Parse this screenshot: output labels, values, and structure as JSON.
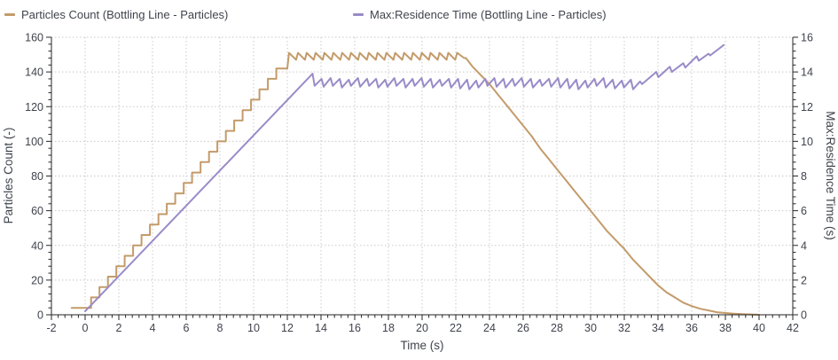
{
  "legend": {
    "items": [
      {
        "label": "Particles Count (Bottling Line - Particles)",
        "color": "#c39b6a"
      },
      {
        "label": "Max:Residence Time (Bottling Line - Particles)",
        "color": "#9a8bc8"
      }
    ]
  },
  "axes": {
    "x": {
      "label": "Time (s)",
      "min": -2,
      "max": 42,
      "major_step": 2,
      "minor_divisions": 5
    },
    "y_left": {
      "label": "Particles Count (-)",
      "min": 0,
      "max": 160,
      "major_step": 20,
      "minor_divisions": 5
    },
    "y_right": {
      "label": "Max:Residence Time (s)",
      "min": 0,
      "max": 16,
      "major_step": 2,
      "minor_divisions": 5
    }
  },
  "styles": {
    "text_color": "#3f434c",
    "axis_color": "#262626",
    "grid_color": "#c9c9c9",
    "background": "#ffffff"
  },
  "chart_data": {
    "type": "line",
    "title": "",
    "grid": "dotted",
    "legend_position": "top",
    "x_range": [
      -2,
      42
    ],
    "y_left_range": [
      0,
      160
    ],
    "y_right_range": [
      0,
      16
    ],
    "series": [
      {
        "name": "Particles Count (Bottling Line - Particles)",
        "yaxis": "left",
        "color": "#c39b6a",
        "points": [
          [
            -0.8,
            4
          ],
          [
            0.35,
            4
          ],
          [
            0.35,
            10
          ],
          [
            0.85,
            10
          ],
          [
            0.85,
            16
          ],
          [
            1.35,
            16
          ],
          [
            1.35,
            22
          ],
          [
            1.85,
            22
          ],
          [
            1.85,
            28
          ],
          [
            2.35,
            28
          ],
          [
            2.35,
            34
          ],
          [
            2.85,
            34
          ],
          [
            2.85,
            40
          ],
          [
            3.35,
            40
          ],
          [
            3.35,
            46
          ],
          [
            3.85,
            46
          ],
          [
            3.85,
            52
          ],
          [
            4.35,
            52
          ],
          [
            4.35,
            58
          ],
          [
            4.85,
            58
          ],
          [
            4.85,
            64
          ],
          [
            5.35,
            64
          ],
          [
            5.35,
            70
          ],
          [
            5.85,
            70
          ],
          [
            5.85,
            76
          ],
          [
            6.35,
            76
          ],
          [
            6.35,
            82
          ],
          [
            6.85,
            82
          ],
          [
            6.85,
            88
          ],
          [
            7.35,
            88
          ],
          [
            7.35,
            94
          ],
          [
            7.85,
            94
          ],
          [
            7.85,
            100
          ],
          [
            8.35,
            100
          ],
          [
            8.35,
            106
          ],
          [
            8.85,
            106
          ],
          [
            8.85,
            112
          ],
          [
            9.35,
            112
          ],
          [
            9.35,
            118
          ],
          [
            9.85,
            118
          ],
          [
            9.85,
            124
          ],
          [
            10.35,
            124
          ],
          [
            10.35,
            130
          ],
          [
            10.85,
            130
          ],
          [
            10.85,
            136
          ],
          [
            11.35,
            136
          ],
          [
            11.35,
            142
          ],
          [
            12.0,
            142
          ],
          [
            12.1,
            151
          ],
          [
            12.52,
            147
          ],
          [
            12.63,
            151
          ],
          [
            13.05,
            147
          ],
          [
            13.15,
            151
          ],
          [
            13.57,
            147
          ],
          [
            13.68,
            151
          ],
          [
            14.1,
            147
          ],
          [
            14.2,
            151
          ],
          [
            14.62,
            147
          ],
          [
            14.73,
            151
          ],
          [
            15.15,
            147
          ],
          [
            15.25,
            151
          ],
          [
            15.67,
            147
          ],
          [
            15.78,
            151
          ],
          [
            16.2,
            147
          ],
          [
            16.3,
            151
          ],
          [
            16.72,
            147
          ],
          [
            16.83,
            151
          ],
          [
            17.25,
            147
          ],
          [
            17.35,
            151
          ],
          [
            17.77,
            147
          ],
          [
            17.88,
            151
          ],
          [
            18.3,
            147
          ],
          [
            18.4,
            151
          ],
          [
            18.82,
            147
          ],
          [
            18.93,
            151
          ],
          [
            19.35,
            147
          ],
          [
            19.45,
            151
          ],
          [
            19.87,
            147
          ],
          [
            19.98,
            151
          ],
          [
            20.4,
            147
          ],
          [
            20.5,
            151
          ],
          [
            20.92,
            147
          ],
          [
            21.03,
            151
          ],
          [
            21.45,
            147
          ],
          [
            21.55,
            151
          ],
          [
            21.97,
            147
          ],
          [
            22.08,
            151
          ],
          [
            22.5,
            148
          ],
          [
            22.6,
            148
          ],
          [
            23,
            143
          ],
          [
            23.5,
            138
          ],
          [
            24,
            133
          ],
          [
            24.5,
            127
          ],
          [
            25,
            121
          ],
          [
            25.5,
            115
          ],
          [
            26,
            109
          ],
          [
            26.5,
            103
          ],
          [
            27,
            96
          ],
          [
            27.5,
            90
          ],
          [
            28,
            84
          ],
          [
            28.5,
            78
          ],
          [
            29,
            72
          ],
          [
            29.5,
            66
          ],
          [
            30,
            60
          ],
          [
            30.5,
            54
          ],
          [
            31,
            48
          ],
          [
            31.5,
            43
          ],
          [
            32,
            38
          ],
          [
            32.5,
            32
          ],
          [
            33,
            27
          ],
          [
            33.5,
            22
          ],
          [
            34,
            17
          ],
          [
            34.5,
            13
          ],
          [
            35,
            10
          ],
          [
            35.5,
            7
          ],
          [
            36,
            5
          ],
          [
            36.5,
            3.5
          ],
          [
            37,
            2.5
          ],
          [
            37.5,
            1.5
          ],
          [
            38,
            1
          ],
          [
            38.5,
            0.6
          ],
          [
            39,
            0.4
          ],
          [
            39.5,
            0.2
          ],
          [
            40,
            0
          ]
        ]
      },
      {
        "name": "Max:Residence Time (Bottling Line - Particles)",
        "yaxis": "right",
        "color": "#9a8bc8",
        "points": [
          [
            0,
            0.2
          ],
          [
            13.5,
            13.9
          ],
          [
            13.62,
            13.2
          ],
          [
            14.03,
            13.6
          ],
          [
            14.16,
            13.15
          ],
          [
            14.57,
            13.65
          ],
          [
            14.7,
            13.2
          ],
          [
            15.11,
            13.6
          ],
          [
            15.24,
            13.1
          ],
          [
            15.65,
            13.55
          ],
          [
            15.78,
            13.2
          ],
          [
            16.19,
            13.65
          ],
          [
            16.32,
            13.15
          ],
          [
            16.73,
            13.6
          ],
          [
            16.86,
            13.2
          ],
          [
            17.27,
            13.6
          ],
          [
            17.4,
            13.1
          ],
          [
            17.81,
            13.55
          ],
          [
            17.94,
            13.15
          ],
          [
            18.35,
            13.65
          ],
          [
            18.48,
            13.2
          ],
          [
            18.89,
            13.6
          ],
          [
            19.02,
            13.1
          ],
          [
            19.43,
            13.6
          ],
          [
            19.56,
            13.2
          ],
          [
            19.97,
            13.65
          ],
          [
            20.1,
            13.15
          ],
          [
            20.51,
            13.6
          ],
          [
            20.64,
            13.1
          ],
          [
            21.05,
            13.55
          ],
          [
            21.18,
            13.2
          ],
          [
            21.59,
            13.6
          ],
          [
            21.72,
            13.1
          ],
          [
            22.13,
            13.6
          ],
          [
            22.26,
            13.05
          ],
          [
            22.67,
            13.55
          ],
          [
            22.8,
            13.0
          ],
          [
            23.21,
            13.5
          ],
          [
            23.34,
            13.1
          ],
          [
            23.75,
            13.6
          ],
          [
            23.88,
            13.2
          ],
          [
            24.29,
            13.65
          ],
          [
            24.42,
            13.15
          ],
          [
            24.83,
            13.6
          ],
          [
            24.96,
            13.1
          ],
          [
            25.37,
            13.6
          ],
          [
            25.5,
            13.2
          ],
          [
            25.91,
            13.65
          ],
          [
            26.04,
            13.15
          ],
          [
            26.45,
            13.6
          ],
          [
            26.58,
            13.1
          ],
          [
            26.99,
            13.55
          ],
          [
            27.12,
            13.2
          ],
          [
            27.53,
            13.6
          ],
          [
            27.66,
            13.15
          ],
          [
            28.07,
            13.65
          ],
          [
            28.2,
            13.1
          ],
          [
            28.61,
            13.6
          ],
          [
            28.74,
            13.05
          ],
          [
            29.15,
            13.55
          ],
          [
            29.28,
            13.0
          ],
          [
            29.69,
            13.5
          ],
          [
            29.82,
            13.1
          ],
          [
            30.23,
            13.6
          ],
          [
            30.36,
            13.2
          ],
          [
            30.77,
            13.65
          ],
          [
            30.9,
            13.1
          ],
          [
            31.31,
            13.55
          ],
          [
            31.44,
            13.05
          ],
          [
            31.85,
            13.5
          ],
          [
            31.98,
            13.1
          ],
          [
            32.39,
            13.55
          ],
          [
            32.52,
            13.0
          ],
          [
            32.93,
            13.45
          ],
          [
            33.06,
            13.3
          ],
          [
            33.9,
            14.0
          ],
          [
            34.02,
            13.7
          ],
          [
            34.7,
            14.3
          ],
          [
            34.82,
            14.0
          ],
          [
            35.5,
            14.5
          ],
          [
            35.62,
            14.25
          ],
          [
            36.3,
            14.9
          ],
          [
            36.42,
            14.65
          ],
          [
            37.0,
            15.05
          ],
          [
            37.1,
            14.95
          ],
          [
            37.9,
            15.55
          ]
        ]
      }
    ]
  }
}
